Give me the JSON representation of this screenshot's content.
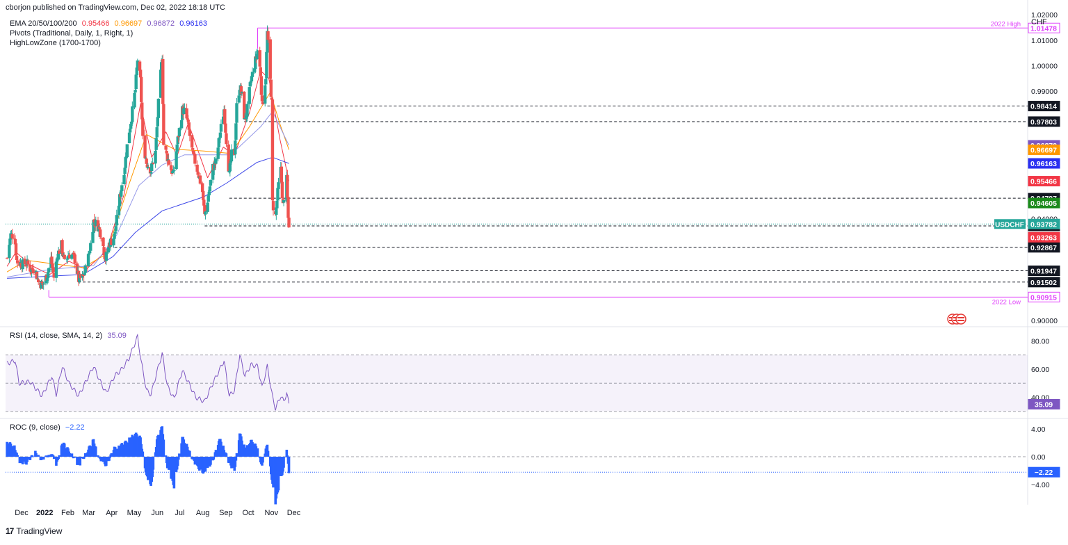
{
  "header": {
    "published": "cborjon published on TradingView.com, Dec 02, 2022 18:18 UTC",
    "currency": "CHF"
  },
  "indicators": {
    "ema": {
      "label": "EMA 20/50/100/200",
      "v20": "0.95466",
      "v50": "0.96697",
      "v100": "0.96872",
      "v200": "0.96163"
    },
    "pivots": "Pivots (Traditional, Daily, 1, Right, 1)",
    "highlow": "HighLowZone (1700-1700)",
    "rsi": {
      "label": "RSI (14, close, SMA, 14, 2)",
      "value": "35.09"
    },
    "roc": {
      "label": "ROC (9, close)",
      "value": "−2.22"
    }
  },
  "footer": {
    "brand": "TradingView",
    "logo_icon": "tradingview-logo-icon"
  },
  "colors": {
    "up": "#26a69a",
    "down": "#ef5350",
    "ema20": "#f23645",
    "ema50": "#ff9800",
    "ema100": "#9598e8",
    "ema200": "#3f49e8",
    "highlow": "#e040fb",
    "rsi": "#7e57c2",
    "roc": "#2962ff"
  },
  "chart_data": [
    {
      "type": "candlestick",
      "symbol": "USDCHF",
      "last_price": "0.93782",
      "x_tick_labels": [
        "Dec",
        "2022",
        "Feb",
        "Mar",
        "Apr",
        "May",
        "Jun",
        "Jul",
        "Aug",
        "Sep",
        "Oct",
        "Nov",
        "Dec"
      ],
      "y_tick_labels": [
        "1.02000",
        "1.01000",
        "1.00000",
        "0.99000",
        "0.94000",
        "0.90000"
      ],
      "ylim": [
        0.8975,
        1.0225
      ],
      "close_path": [
        [
          "2021-11-19",
          0.9245
        ],
        [
          "2021-11-24",
          0.9335
        ],
        [
          "2021-11-29",
          0.9335
        ],
        [
          "2021-12-02",
          0.9235
        ],
        [
          "2021-12-06",
          0.9225
        ],
        [
          "2021-12-10",
          0.922
        ],
        [
          "2021-12-15",
          0.9225
        ],
        [
          "2021-12-21",
          0.92
        ],
        [
          "2021-12-27",
          0.92
        ],
        [
          "2021-12-31",
          0.915
        ],
        [
          "2022-01-06",
          0.914
        ],
        [
          "2022-01-12",
          0.918
        ],
        [
          "2022-01-17",
          0.924
        ],
        [
          "2022-01-21",
          0.917
        ],
        [
          "2022-01-26",
          0.926
        ],
        [
          "2022-01-31",
          0.9295
        ],
        [
          "2022-02-04",
          0.9225
        ],
        [
          "2022-02-10",
          0.926
        ],
        [
          "2022-02-14",
          0.9255
        ],
        [
          "2022-02-18",
          0.924
        ],
        [
          "2022-02-23",
          0.916
        ],
        [
          "2022-03-01",
          0.917
        ],
        [
          "2022-03-07",
          0.923
        ],
        [
          "2022-03-11",
          0.93
        ],
        [
          "2022-03-15",
          0.939
        ],
        [
          "2022-03-21",
          0.937
        ],
        [
          "2022-03-25",
          0.934
        ],
        [
          "2022-03-31",
          0.924
        ],
        [
          "2022-04-05",
          0.93
        ],
        [
          "2022-04-12",
          0.933
        ],
        [
          "2022-04-19",
          0.948
        ],
        [
          "2022-04-26",
          0.961
        ],
        [
          "2022-04-30",
          0.971
        ],
        [
          "2022-05-05",
          0.98
        ],
        [
          "2022-05-10",
          0.9905
        ],
        [
          "2022-05-13",
          1.0025
        ],
        [
          "2022-05-17",
          0.994
        ],
        [
          "2022-05-20",
          0.971
        ],
        [
          "2022-05-25",
          0.962
        ],
        [
          "2022-05-31",
          0.959
        ],
        [
          "2022-06-06",
          0.966
        ],
        [
          "2022-06-10",
          0.985
        ],
        [
          "2022-06-15",
          1.004
        ],
        [
          "2022-06-17",
          0.969
        ],
        [
          "2022-06-24",
          0.962
        ],
        [
          "2022-06-30",
          0.957
        ],
        [
          "2022-07-05",
          0.969
        ],
        [
          "2022-07-12",
          0.9825
        ],
        [
          "2022-07-15",
          0.982
        ],
        [
          "2022-07-19",
          0.978
        ],
        [
          "2022-07-26",
          0.965
        ],
        [
          "2022-07-30",
          0.9615
        ],
        [
          "2022-08-04",
          0.956
        ],
        [
          "2022-08-08",
          0.9505
        ],
        [
          "2022-08-11",
          0.941
        ],
        [
          "2022-08-16",
          0.949
        ],
        [
          "2022-08-22",
          0.96
        ],
        [
          "2022-08-26",
          0.962
        ],
        [
          "2022-08-31",
          0.972
        ],
        [
          "2022-09-06",
          0.983
        ],
        [
          "2022-09-09",
          0.971
        ],
        [
          "2022-09-13",
          0.957
        ],
        [
          "2022-09-16",
          0.965
        ],
        [
          "2022-09-20",
          0.966
        ],
        [
          "2022-09-23",
          0.984
        ],
        [
          "2022-09-27",
          0.992
        ],
        [
          "2022-09-30",
          0.988
        ],
        [
          "2022-10-04",
          0.978
        ],
        [
          "2022-10-07",
          0.983
        ],
        [
          "2022-10-12",
          0.994
        ],
        [
          "2022-10-17",
          1.0005
        ],
        [
          "2022-10-21",
          1.006
        ],
        [
          "2022-10-25",
          0.997
        ],
        [
          "2022-10-27",
          0.984
        ],
        [
          "2022-11-01",
          0.996
        ],
        [
          "2022-11-03",
          1.013
        ],
        [
          "2022-11-07",
          0.994
        ],
        [
          "2022-11-09",
          0.985
        ],
        [
          "2022-11-10",
          0.946
        ],
        [
          "2022-11-14",
          0.941
        ],
        [
          "2022-11-18",
          0.953
        ],
        [
          "2022-11-21",
          0.959
        ],
        [
          "2022-11-24",
          0.945
        ],
        [
          "2022-11-28",
          0.949
        ],
        [
          "2022-11-29",
          0.955
        ],
        [
          "2022-12-01",
          0.94
        ],
        [
          "2022-12-02",
          0.9378
        ]
      ],
      "ema_series": [
        {
          "name": "EMA 20",
          "end_value": 0.95466,
          "values": [
            [
              "2021-11-19",
              0.9212
            ],
            [
              "2021-12-01",
              0.9268
            ],
            [
              "2021-12-20",
              0.9218
            ],
            [
              "2022-01-15",
              0.918
            ],
            [
              "2022-02-10",
              0.9232
            ],
            [
              "2022-03-05",
              0.92
            ],
            [
              "2022-04-01",
              0.9272
            ],
            [
              "2022-04-25",
              0.9495
            ],
            [
              "2022-05-17",
              0.985
            ],
            [
              "2022-06-01",
              0.964
            ],
            [
              "2022-06-20",
              0.974
            ],
            [
              "2022-07-05",
              0.9645
            ],
            [
              "2022-07-20",
              0.9775
            ],
            [
              "2022-08-15",
              0.956
            ],
            [
              "2022-09-05",
              0.968
            ],
            [
              "2022-09-20",
              0.965
            ],
            [
              "2022-10-10",
              0.9815
            ],
            [
              "2022-10-25",
              0.998
            ],
            [
              "2022-11-05",
              0.995
            ],
            [
              "2022-11-20",
              0.971
            ],
            [
              "2022-12-02",
              0.9547
            ]
          ]
        },
        {
          "name": "EMA 50",
          "end_value": 0.96697,
          "values": [
            [
              "2021-11-19",
              0.919
            ],
            [
              "2021-12-15",
              0.9236
            ],
            [
              "2022-01-20",
              0.9222
            ],
            [
              "2022-03-01",
              0.9207
            ],
            [
              "2022-04-01",
              0.926
            ],
            [
              "2022-05-01",
              0.953
            ],
            [
              "2022-05-25",
              0.973
            ],
            [
              "2022-07-01",
              0.9672
            ],
            [
              "2022-08-10",
              0.9665
            ],
            [
              "2022-09-15",
              0.9655
            ],
            [
              "2022-10-10",
              0.976
            ],
            [
              "2022-11-07",
              0.9895
            ],
            [
              "2022-11-20",
              0.977
            ],
            [
              "2022-12-02",
              0.967
            ]
          ]
        },
        {
          "name": "EMA 100",
          "end_value": 0.96872,
          "values": [
            [
              "2021-11-19",
              0.917
            ],
            [
              "2022-01-15",
              0.92
            ],
            [
              "2022-03-15",
              0.9215
            ],
            [
              "2022-04-15",
              0.9335
            ],
            [
              "2022-05-15",
              0.953
            ],
            [
              "2022-06-15",
              0.961
            ],
            [
              "2022-07-15",
              0.965
            ],
            [
              "2022-09-15",
              0.965
            ],
            [
              "2022-10-25",
              0.976
            ],
            [
              "2022-11-10",
              0.982
            ],
            [
              "2022-12-02",
              0.9687
            ]
          ]
        },
        {
          "name": "EMA 200",
          "end_value": 0.96163,
          "values": [
            [
              "2021-11-19",
              0.9165
            ],
            [
              "2022-03-01",
              0.918
            ],
            [
              "2022-04-10",
              0.925
            ],
            [
              "2022-05-10",
              0.9345
            ],
            [
              "2022-06-15",
              0.943
            ],
            [
              "2022-08-10",
              0.9485
            ],
            [
              "2022-09-10",
              0.954
            ],
            [
              "2022-10-20",
              0.962
            ],
            [
              "2022-11-10",
              0.964
            ],
            [
              "2022-12-02",
              0.9616
            ]
          ]
        }
      ],
      "levels": [
        {
          "value": 1.01478,
          "label": "1.01478",
          "caption": "2022 High",
          "from": "2022-10-21",
          "style": "highlow"
        },
        {
          "value": 0.98414,
          "label": "0.98414",
          "from": "2022-11-03",
          "style": "dashed"
        },
        {
          "value": 0.97803,
          "label": "0.97803",
          "from": "2022-10-03",
          "style": "dashed"
        },
        {
          "value": 0.94797,
          "label": "0.94797",
          "from": "2022-09-13",
          "style": "dashed"
        },
        {
          "value": 0.93706,
          "label": "0.93706",
          "from": "2022-08-11",
          "style": "dashed"
        },
        {
          "value": 0.92867,
          "label": "0.92867",
          "from": "2022-04-12",
          "style": "dashed"
        },
        {
          "value": 0.91947,
          "label": "0.91947",
          "from": "2022-03-31",
          "style": "dashed"
        },
        {
          "value": 0.91502,
          "label": "0.91502",
          "from": "2022-02-22",
          "style": "dashed"
        },
        {
          "value": 0.90915,
          "label": "0.90915",
          "caption": "2022 Low",
          "from": "2022-01-14",
          "style": "highlow"
        }
      ],
      "price_labels": [
        {
          "value": 0.96872,
          "label": "0.96872",
          "color": "#7e57c2"
        },
        {
          "value": 0.96697,
          "label": "0.96697",
          "color": "#ff9800"
        },
        {
          "value": 0.96163,
          "label": "0.96163",
          "color": "#2a2ff0"
        },
        {
          "value": 0.95466,
          "label": "0.95466",
          "color": "#f23645"
        },
        {
          "value": 0.94605,
          "label": "0.94605",
          "color": "#1b8a1b"
        },
        {
          "value": 0.93782,
          "label": "0.93782",
          "color": "#26a69a",
          "tag": "USDCHF"
        },
        {
          "value": 0.93263,
          "label": "0.93263",
          "color": "#f23645"
        }
      ]
    },
    {
      "type": "line",
      "name": "RSI",
      "y_tick_labels": [
        "80.00",
        "60.00",
        "40.00"
      ],
      "ylim": [
        25,
        90
      ],
      "band": [
        30,
        70
      ],
      "midline": 50,
      "end_value": 35.09,
      "values": [
        [
          "2021-11-19",
          64
        ],
        [
          "2021-11-30",
          66
        ],
        [
          "2021-12-05",
          50
        ],
        [
          "2021-12-20",
          51
        ],
        [
          "2022-01-05",
          41
        ],
        [
          "2022-01-18",
          55
        ],
        [
          "2022-01-24",
          42
        ],
        [
          "2022-02-01",
          62
        ],
        [
          "2022-02-10",
          50
        ],
        [
          "2022-02-23",
          41
        ],
        [
          "2022-03-15",
          62
        ],
        [
          "2022-03-25",
          50
        ],
        [
          "2022-04-01",
          43
        ],
        [
          "2022-04-12",
          55
        ],
        [
          "2022-04-22",
          60
        ],
        [
          "2022-05-01",
          67
        ],
        [
          "2022-05-13",
          83
        ],
        [
          "2022-05-18",
          65
        ],
        [
          "2022-05-25",
          45
        ],
        [
          "2022-05-31",
          42
        ],
        [
          "2022-06-08",
          58
        ],
        [
          "2022-06-15",
          71
        ],
        [
          "2022-06-22",
          48
        ],
        [
          "2022-07-01",
          39
        ],
        [
          "2022-07-12",
          59
        ],
        [
          "2022-07-19",
          52
        ],
        [
          "2022-07-30",
          40
        ],
        [
          "2022-08-11",
          37
        ],
        [
          "2022-08-22",
          50
        ],
        [
          "2022-09-06",
          66
        ],
        [
          "2022-09-13",
          41
        ],
        [
          "2022-09-20",
          45
        ],
        [
          "2022-09-27",
          70
        ],
        [
          "2022-10-04",
          55
        ],
        [
          "2022-10-12",
          63
        ],
        [
          "2022-10-21",
          62
        ],
        [
          "2022-10-27",
          47
        ],
        [
          "2022-11-03",
          62
        ],
        [
          "2022-11-10",
          40
        ],
        [
          "2022-11-14",
          32
        ],
        [
          "2022-11-21",
          41
        ],
        [
          "2022-11-25",
          37
        ],
        [
          "2022-11-29",
          43
        ],
        [
          "2022-12-02",
          35
        ]
      ]
    },
    {
      "type": "bar",
      "name": "ROC",
      "y_tick_labels": [
        "4.00",
        "0.00",
        "−4.00"
      ],
      "ylim": [
        -6.9,
        5.5
      ],
      "end_value": -2.22,
      "values": [
        [
          "2021-11-19",
          2.0
        ],
        [
          "2021-11-29",
          1.6
        ],
        [
          "2021-12-05",
          -0.8
        ],
        [
          "2021-12-15",
          -0.9
        ],
        [
          "2021-12-27",
          0.6
        ],
        [
          "2022-01-05",
          -0.5
        ],
        [
          "2022-01-18",
          0.6
        ],
        [
          "2022-01-24",
          -1.4
        ],
        [
          "2022-02-01",
          2.1
        ],
        [
          "2022-02-15",
          0.2
        ],
        [
          "2022-02-23",
          -1.4
        ],
        [
          "2022-03-15",
          2.4
        ],
        [
          "2022-03-24",
          -0.6
        ],
        [
          "2022-04-01",
          -1.2
        ],
        [
          "2022-04-12",
          1.2
        ],
        [
          "2022-04-25",
          1.9
        ],
        [
          "2022-05-10",
          3.3
        ],
        [
          "2022-05-17",
          2.7
        ],
        [
          "2022-05-25",
          -2.8
        ],
        [
          "2022-05-31",
          -4.4
        ],
        [
          "2022-06-08",
          2.5
        ],
        [
          "2022-06-15",
          4.3
        ],
        [
          "2022-06-22",
          -1.5
        ],
        [
          "2022-07-01",
          -4.3
        ],
        [
          "2022-07-12",
          2.8
        ],
        [
          "2022-07-20",
          1.2
        ],
        [
          "2022-07-30",
          -1.3
        ],
        [
          "2022-08-11",
          -2.4
        ],
        [
          "2022-08-22",
          -0.5
        ],
        [
          "2022-09-01",
          2.7
        ],
        [
          "2022-09-13",
          -1.0
        ],
        [
          "2022-09-20",
          -2.0
        ],
        [
          "2022-09-27",
          3.4
        ],
        [
          "2022-10-04",
          1.2
        ],
        [
          "2022-10-12",
          2.3
        ],
        [
          "2022-10-21",
          1.3
        ],
        [
          "2022-10-27",
          -1.5
        ],
        [
          "2022-11-03",
          1.9
        ],
        [
          "2022-11-10",
          -4.0
        ],
        [
          "2022-11-14",
          -6.7
        ],
        [
          "2022-11-21",
          -3.0
        ],
        [
          "2022-11-26",
          -1.5
        ],
        [
          "2022-11-29",
          1.0
        ],
        [
          "2022-12-02",
          -2.2
        ]
      ]
    }
  ]
}
